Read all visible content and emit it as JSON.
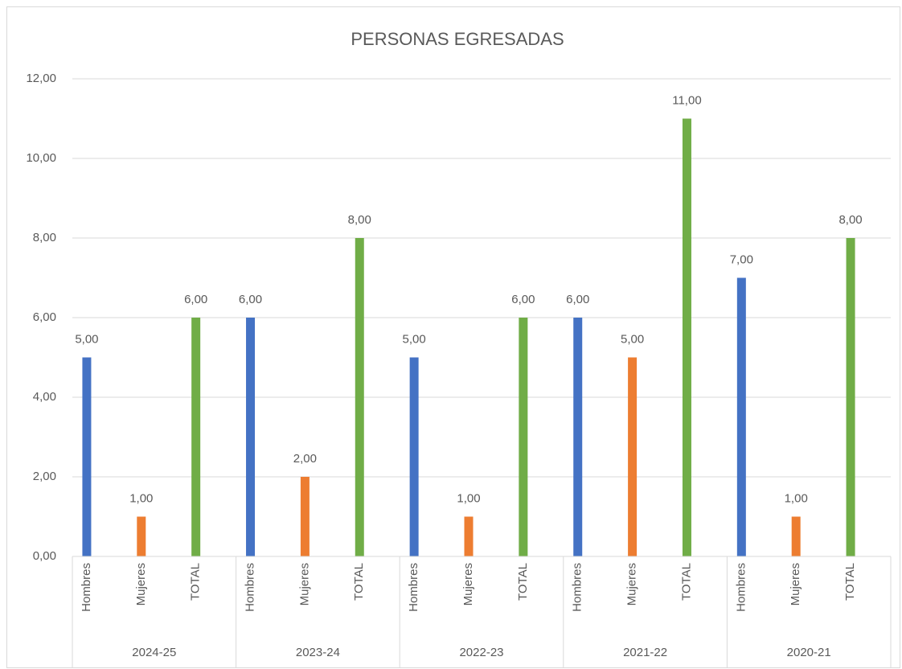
{
  "chart_data": {
    "type": "grouped-bar",
    "title": "PERSONAS EGRESADAS",
    "groups": [
      {
        "name": "2024-25",
        "categories": [
          "Hombres",
          "Mujeres",
          "TOTAL"
        ],
        "values": [
          5,
          1,
          6
        ],
        "value_labels": [
          "5,00",
          "1,00",
          "6,00"
        ]
      },
      {
        "name": "2023-24",
        "categories": [
          "Hombres",
          "Mujeres",
          "TOTAL"
        ],
        "values": [
          6,
          2,
          8
        ],
        "value_labels": [
          "6,00",
          "2,00",
          "8,00"
        ]
      },
      {
        "name": "2022-23",
        "categories": [
          "Hombres",
          "Mujeres",
          "TOTAL"
        ],
        "values": [
          5,
          1,
          6
        ],
        "value_labels": [
          "5,00",
          "1,00",
          "6,00"
        ]
      },
      {
        "name": "2021-22",
        "categories": [
          "Hombres",
          "Mujeres",
          "TOTAL"
        ],
        "values": [
          6,
          5,
          11
        ],
        "value_labels": [
          "6,00",
          "5,00",
          "11,00"
        ]
      },
      {
        "name": "2020-21",
        "categories": [
          "Hombres",
          "Mujeres",
          "TOTAL"
        ],
        "values": [
          7,
          1,
          8
        ],
        "value_labels": [
          "7,00",
          "1,00",
          "8,00"
        ]
      }
    ],
    "colors": [
      "#4472c4",
      "#ed7d31",
      "#70ad47"
    ],
    "ylim": [
      0,
      12
    ],
    "yticks": [
      {
        "value": 0,
        "label": "0,00"
      },
      {
        "value": 2,
        "label": "2,00"
      },
      {
        "value": 4,
        "label": "4,00"
      },
      {
        "value": 6,
        "label": "6,00"
      },
      {
        "value": 8,
        "label": "8,00"
      },
      {
        "value": 10,
        "label": "10,00"
      },
      {
        "value": 12,
        "label": "12,00"
      }
    ],
    "grid": true
  }
}
